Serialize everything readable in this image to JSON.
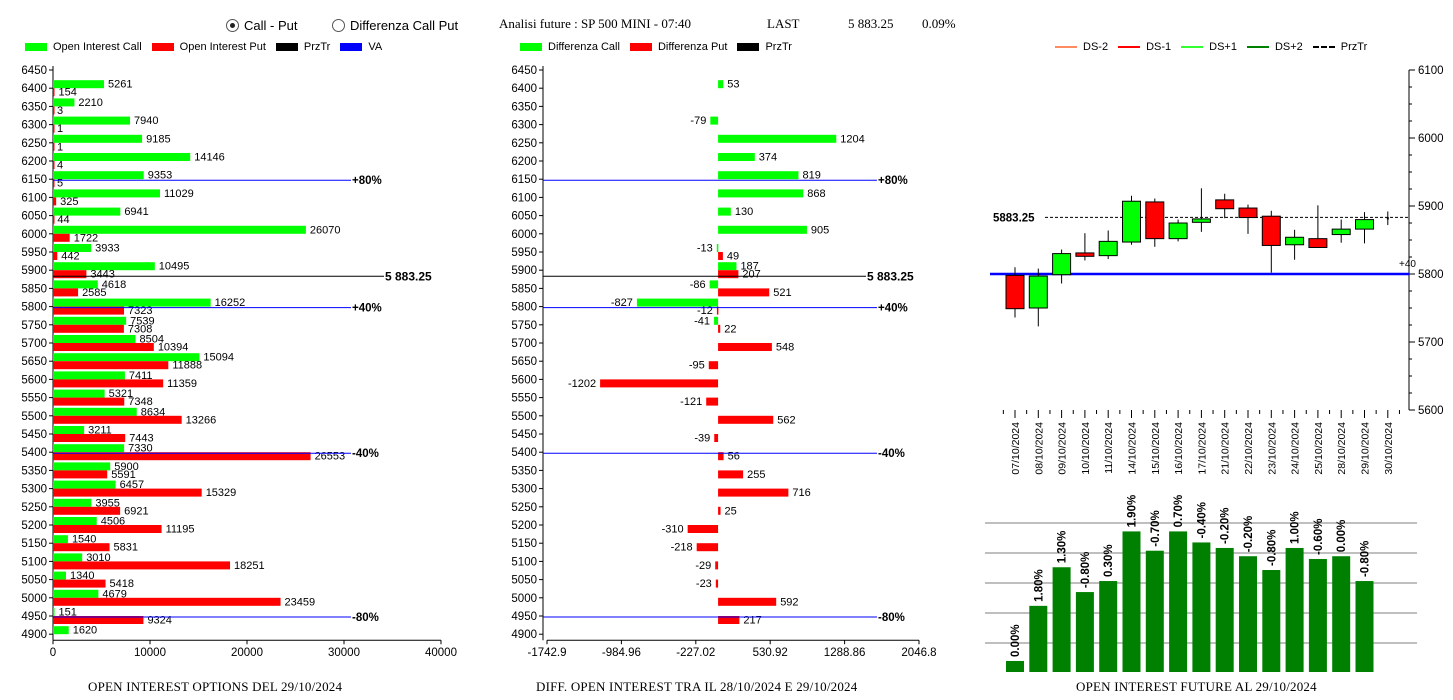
{
  "header": {
    "option_call_put": "Call - Put",
    "option_diff": "Differenza Call Put",
    "title": "Analisi future : SP 500 MINI - 07:40",
    "last_label": "LAST",
    "last_value": "5 883.25",
    "change": "0.09%"
  },
  "legend1": [
    {
      "label": "Open Interest Call",
      "color": "#00ff00"
    },
    {
      "label": "Open Interest Put",
      "color": "#ff0000"
    },
    {
      "label": "PrzTr",
      "color": "#000000"
    },
    {
      "label": "VA",
      "color": "#0000ff"
    }
  ],
  "legend2": [
    {
      "label": "Differenza Call",
      "color": "#00ff00"
    },
    {
      "label": "Differenza Put",
      "color": "#ff0000"
    },
    {
      "label": "PrzTr",
      "color": "#000000"
    }
  ],
  "legend3": [
    {
      "label": "DS-2",
      "color": "#ff8c60",
      "style": "solid"
    },
    {
      "label": "DS-1",
      "color": "#ff0000",
      "style": "solid"
    },
    {
      "label": "DS+1",
      "color": "#33ff33",
      "style": "solid"
    },
    {
      "label": "DS+2",
      "color": "#008000",
      "style": "solid"
    },
    {
      "label": "PrzTr",
      "color": "#000000",
      "style": "dashed"
    }
  ],
  "footers": {
    "chart1": "OPEN INTEREST OPTIONS DEL 29/10/2024",
    "chart2": "DIFF. OPEN INTEREST TRA IL 28/10/2024 E 29/10/2024",
    "chart3": "OPEN INTEREST FUTURE AL 29/10/2024"
  },
  "chart_data": [
    {
      "type": "bar",
      "orientation": "horizontal",
      "categories": [
        6450,
        6400,
        6350,
        6300,
        6250,
        6200,
        6150,
        6100,
        6050,
        6000,
        5950,
        5900,
        5850,
        5800,
        5750,
        5700,
        5650,
        5600,
        5550,
        5500,
        5450,
        5400,
        5350,
        5300,
        5250,
        5200,
        5150,
        5100,
        5050,
        5000,
        4950,
        4900
      ],
      "series": [
        {
          "name": "Open Interest Call",
          "color": "#00ff00",
          "values": [
            null,
            5261,
            2210,
            7940,
            9185,
            14146,
            9353,
            11029,
            6941,
            26070,
            3933,
            10495,
            4618,
            16252,
            7539,
            8504,
            15094,
            7411,
            5321,
            8634,
            3211,
            7330,
            5900,
            6457,
            3955,
            4506,
            1540,
            3010,
            1340,
            4679,
            151,
            1620
          ]
        },
        {
          "name": "Open Interest Put",
          "color": "#ff0000",
          "values": [
            null,
            154,
            3,
            1,
            1,
            4,
            5,
            325,
            44,
            1722,
            442,
            3443,
            2585,
            7323,
            7308,
            10394,
            11888,
            11359,
            7348,
            13266,
            7443,
            26553,
            5591,
            15329,
            6921,
            11195,
            5831,
            18251,
            5418,
            23459,
            9324,
            null
          ]
        }
      ],
      "xlim": [
        0,
        40000
      ],
      "xticks": [
        "0",
        "10000",
        "20000",
        "30000",
        "40000"
      ],
      "price_line": {
        "value": 5883.25,
        "label": "5 883.25"
      },
      "va_lines": [
        {
          "level": 6150,
          "label": "+80%"
        },
        {
          "level": 5800,
          "label": "+40%"
        },
        {
          "level": 5400,
          "label": "-40%"
        },
        {
          "level": 4950,
          "label": "-80%"
        }
      ]
    },
    {
      "type": "bar",
      "orientation": "horizontal",
      "categories": [
        6450,
        6400,
        6350,
        6300,
        6250,
        6200,
        6150,
        6100,
        6050,
        6000,
        5950,
        5900,
        5850,
        5800,
        5750,
        5700,
        5650,
        5600,
        5550,
        5500,
        5450,
        5400,
        5350,
        5300,
        5250,
        5200,
        5150,
        5100,
        5050,
        5000,
        4950,
        4900
      ],
      "series": [
        {
          "name": "Differenza Call",
          "color": "#00ff00",
          "values": [
            null,
            53,
            null,
            -79,
            1204,
            374,
            819,
            868,
            130,
            905,
            -13,
            187,
            -86,
            -827,
            -41,
            null,
            null,
            null,
            null,
            null,
            null,
            null,
            null,
            null,
            null,
            null,
            null,
            null,
            null,
            null,
            null,
            null
          ]
        },
        {
          "name": "Differenza Put",
          "color": "#ff0000",
          "values": [
            null,
            null,
            null,
            null,
            null,
            null,
            null,
            null,
            null,
            null,
            49,
            207,
            521,
            -12,
            22,
            548,
            -95,
            -1202,
            -121,
            562,
            -39,
            56,
            255,
            716,
            25,
            -310,
            -218,
            -29,
            -23,
            592,
            217,
            null
          ]
        }
      ],
      "xlim": [
        -1742.9,
        2046.8
      ],
      "xticks": [
        "-1742.9",
        "-984.96",
        "-227.02",
        "530.92",
        "1288.86",
        "2046.8"
      ],
      "price_line": {
        "value": 5883.25,
        "label": "5 883.25"
      },
      "va_lines": [
        {
          "level": 6150,
          "label": "+80%"
        },
        {
          "level": 5800,
          "label": "+40%"
        },
        {
          "level": 5400,
          "label": "-40%"
        },
        {
          "level": 4950,
          "label": "-80%"
        }
      ]
    },
    {
      "type": "candlestick",
      "dates": [
        "07/10/2024",
        "08/10/2024",
        "09/10/2024",
        "10/10/2024",
        "11/10/2024",
        "14/10/2024",
        "15/10/2024",
        "16/10/2024",
        "17/10/2024",
        "21/10/2024",
        "22/10/2024",
        "23/10/2024",
        "24/10/2024",
        "25/10/2024",
        "28/10/2024",
        "29/10/2024",
        "30/10/2024"
      ],
      "ohlc": [
        [
          5798,
          5810,
          5736,
          5749
        ],
        [
          5750,
          5808,
          5723,
          5797
        ],
        [
          5799,
          5836,
          5786,
          5830
        ],
        [
          5831,
          5860,
          5820,
          5826
        ],
        [
          5827,
          5864,
          5822,
          5848
        ],
        [
          5847,
          5915,
          5843,
          5907
        ],
        [
          5906,
          5911,
          5840,
          5852
        ],
        [
          5852,
          5880,
          5848,
          5875
        ],
        [
          5876,
          5926,
          5862,
          5881
        ],
        [
          5909,
          5918,
          5882,
          5896
        ],
        [
          5897,
          5902,
          5859,
          5883
        ],
        [
          5885,
          5893,
          5802,
          5842
        ],
        [
          5843,
          5865,
          5821,
          5854
        ],
        [
          5852,
          5901,
          5840,
          5839
        ],
        [
          5858,
          5880,
          5846,
          5866
        ],
        [
          5866,
          5891,
          5845,
          5880
        ],
        [
          5881,
          5892,
          5872,
          5883
        ]
      ],
      "colors": [
        "red",
        "green",
        "green",
        "red",
        "green",
        "green",
        "red",
        "green",
        "green",
        "red",
        "red",
        "red",
        "green",
        "red",
        "green",
        "green",
        "black"
      ],
      "ylim": [
        5600,
        6100
      ],
      "yticks": [
        "5600",
        "5700",
        "5800",
        "5900",
        "6000",
        "6100"
      ],
      "przTr": {
        "value": 5883.25,
        "label": "5883.25"
      },
      "ref_line": {
        "value": 5800,
        "label": "+40"
      }
    },
    {
      "type": "bar",
      "categories": [
        "07/10/2024",
        "08/10/2024",
        "09/10/2024",
        "10/10/2024",
        "11/10/2024",
        "14/10/2024",
        "15/10/2024",
        "16/10/2024",
        "17/10/2024",
        "21/10/2024",
        "22/10/2024",
        "23/10/2024",
        "24/10/2024",
        "25/10/2024",
        "28/10/2024",
        "29/10/2024",
        "30/10/2024"
      ],
      "bar_levels": [
        0.04,
        0.24,
        0.38,
        0.29,
        0.33,
        0.51,
        0.44,
        0.51,
        0.47,
        0.45,
        0.42,
        0.37,
        0.45,
        0.41,
        0.42,
        0.33,
        null
      ],
      "labels": [
        "0.00%",
        "1.80%",
        "1.30%",
        "-0.80%",
        "0.30%",
        "1.90%",
        "-0.70%",
        "0.70%",
        "-0.40%",
        "-0.20%",
        "-0.20%",
        "-0.80%",
        "1.00%",
        "-0.60%",
        "0.00%",
        "-0.80%"
      ],
      "color": "#008000"
    }
  ]
}
